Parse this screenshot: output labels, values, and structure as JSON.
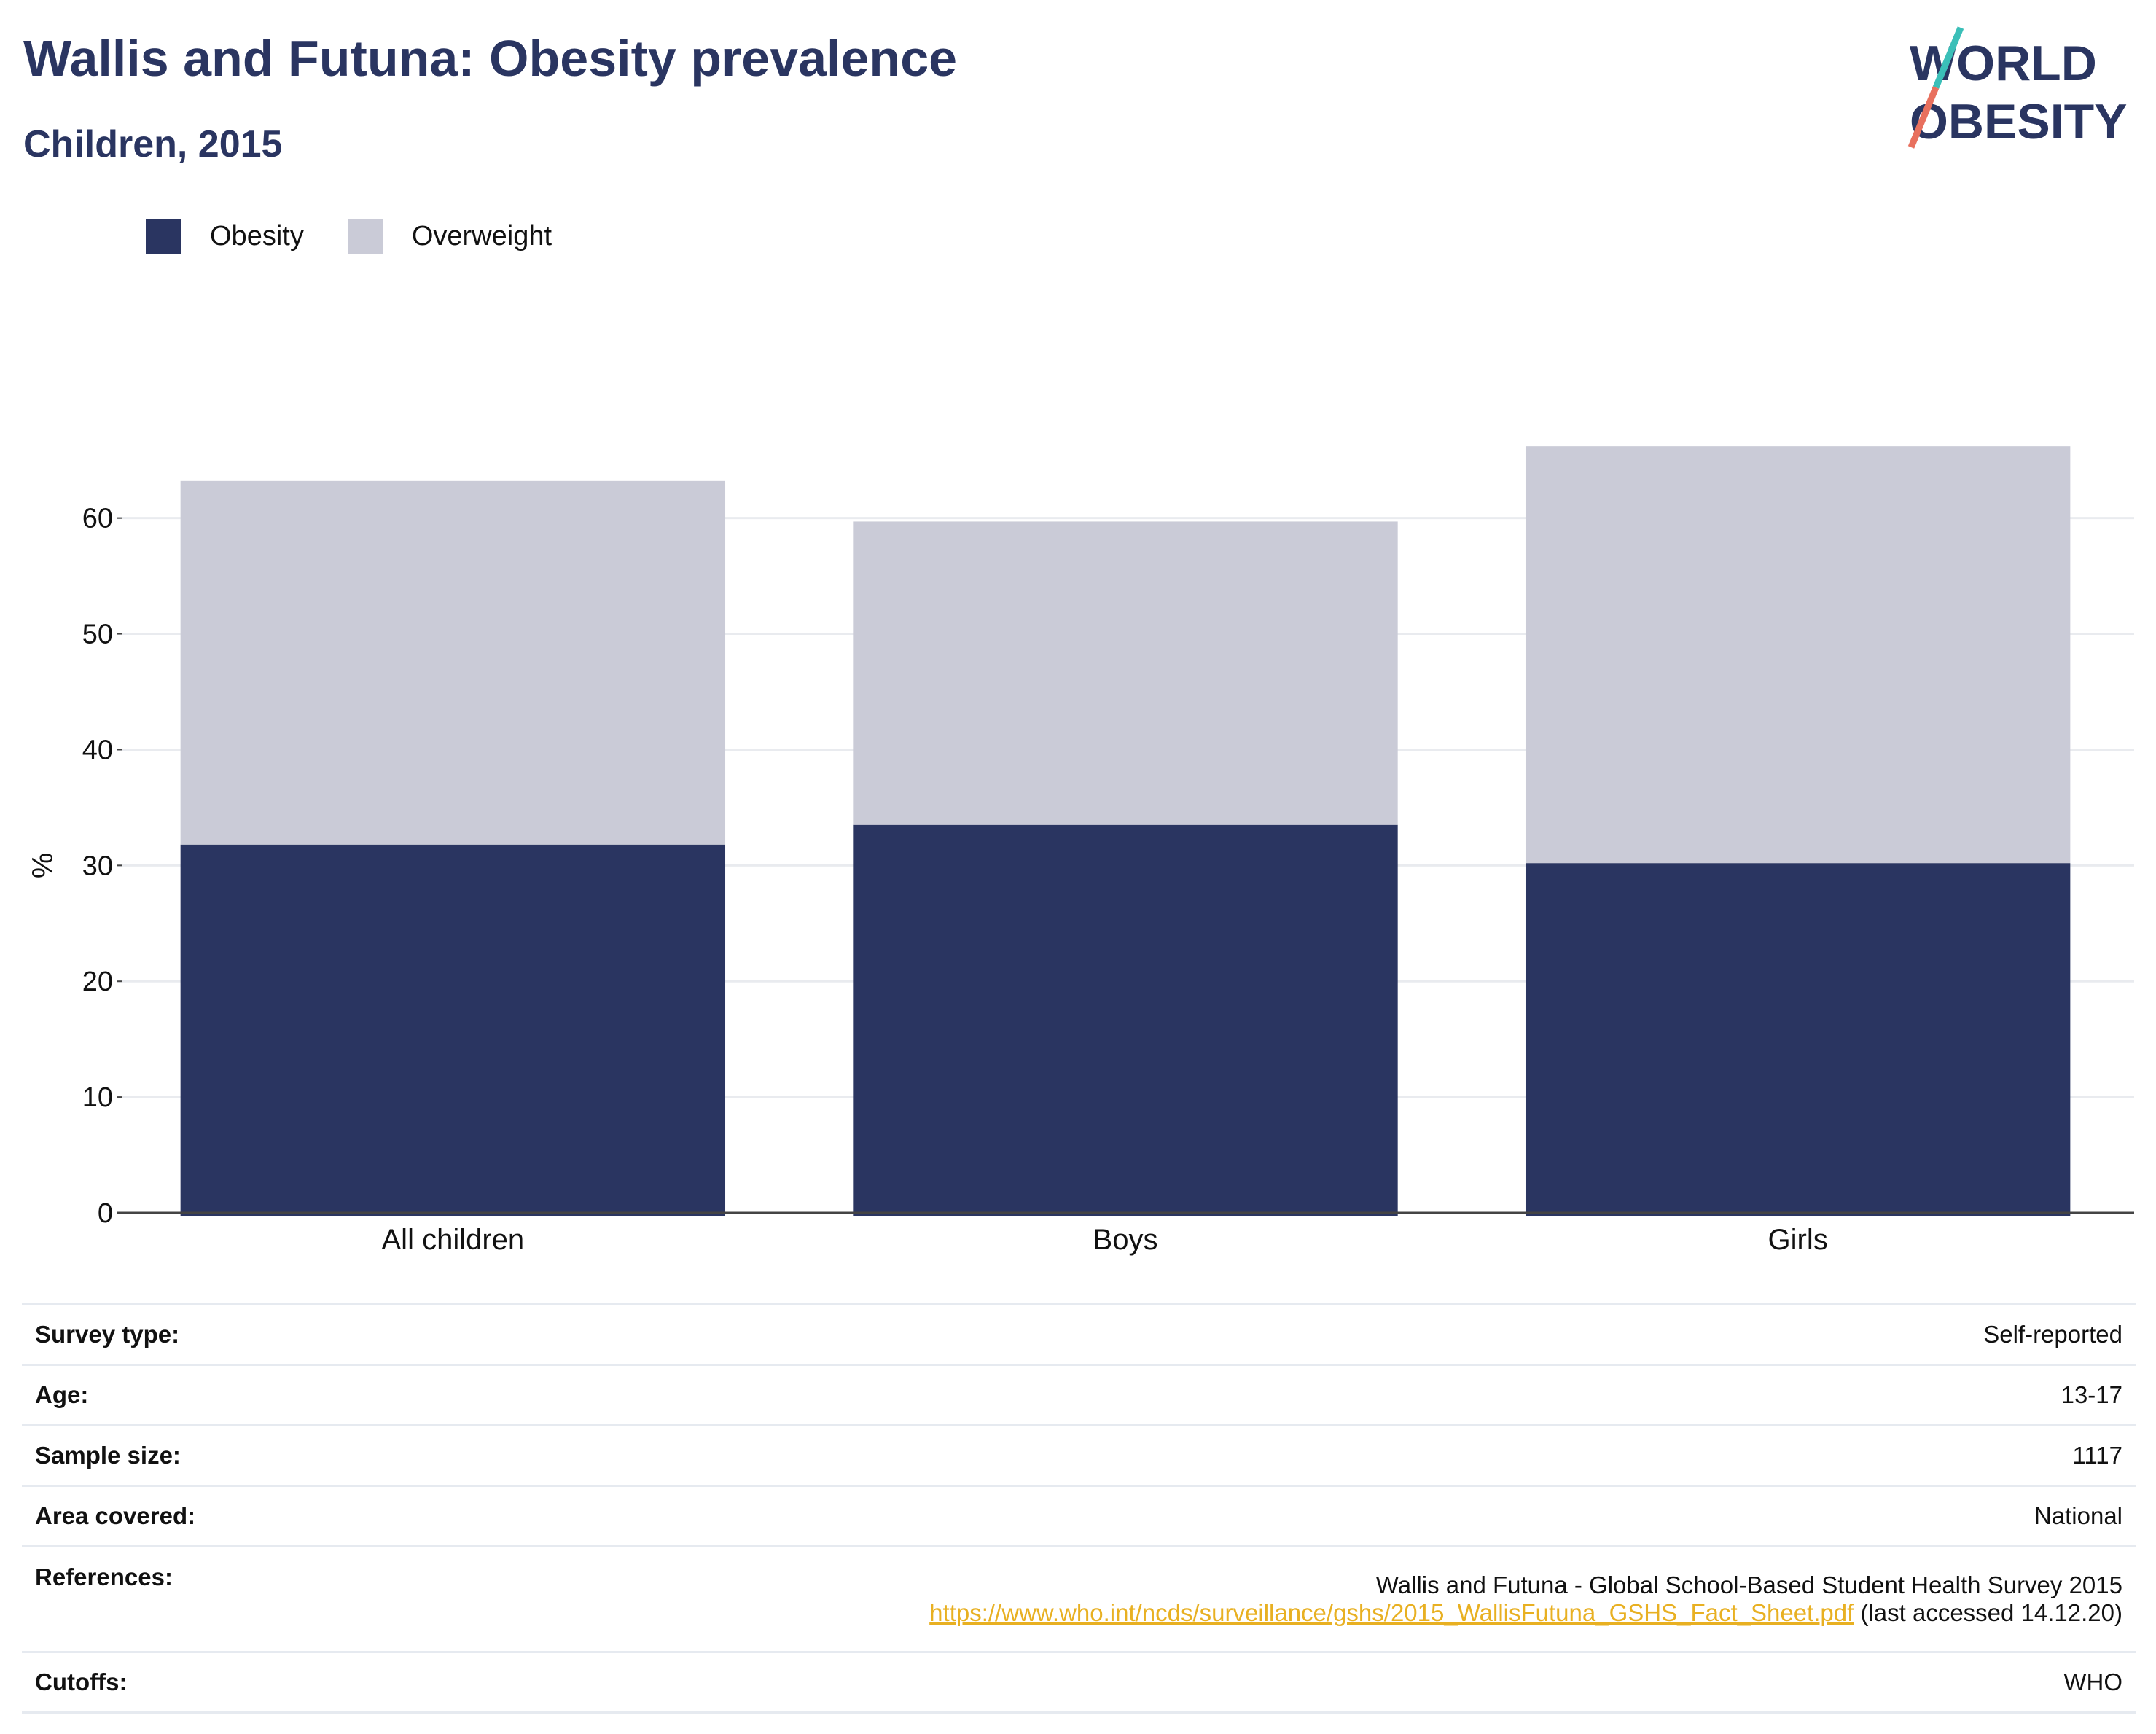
{
  "header": {
    "title": "Wallis and Futuna: Obesity prevalence",
    "subtitle": "Children, 2015"
  },
  "logo": {
    "line1": "WORLD",
    "line2": "OBESITY",
    "accent_teal": "#3bbfb8",
    "accent_coral": "#e8705e"
  },
  "legend": [
    {
      "label": "Obesity",
      "color": "#2a3561"
    },
    {
      "label": "Overweight",
      "color": "#cacbd7"
    }
  ],
  "chart_data": {
    "type": "bar",
    "stacked": true,
    "categories": [
      "All children",
      "Boys",
      "Girls"
    ],
    "series": [
      {
        "name": "Obesity",
        "color": "#2a3561",
        "values": [
          31.8,
          33.5,
          30.2
        ]
      },
      {
        "name": "Overweight",
        "color": "#cacbd7",
        "values": [
          31.4,
          26.2,
          36.0
        ]
      }
    ],
    "title": "Wallis and Futuna: Obesity prevalence",
    "subtitle": "Children, 2015",
    "xlabel": "",
    "ylabel": "%",
    "ylim": [
      0,
      72
    ],
    "yticks": [
      0,
      10,
      20,
      30,
      40,
      50,
      60
    ],
    "grid": true,
    "legend_position": "top-left"
  },
  "info": {
    "survey_type_label": "Survey type:",
    "survey_type_value": "Self-reported",
    "age_label": "Age:",
    "age_value": "13-17",
    "sample_size_label": "Sample size:",
    "sample_size_value": "1117",
    "area_label": "Area covered:",
    "area_value": "National",
    "references_label": "References:",
    "references_text": "Wallis and Futuna - Global School-Based Student Health Survey 2015",
    "references_url": "https://www.who.int/ncds/surveillance/gshs/2015_WallisFutuna_GSHS_Fact_Sheet.pdf",
    "references_suffix": " (last accessed 14.12.20)",
    "cutoffs_label": "Cutoffs:",
    "cutoffs_value": "WHO"
  }
}
